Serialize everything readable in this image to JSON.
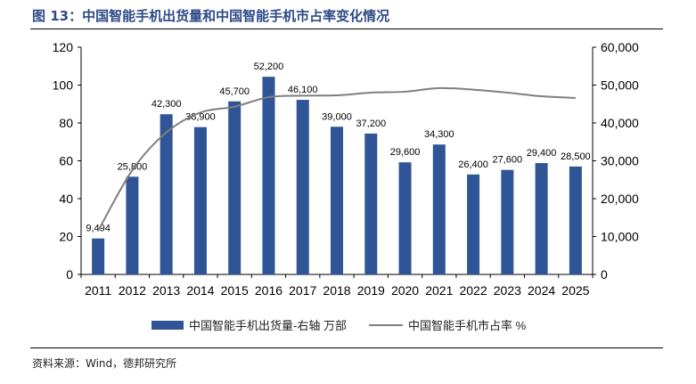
{
  "header": {
    "title": "图 13：中国智能手机出货量和中国智能手机市占率变化情况"
  },
  "footer": {
    "source": "资料来源：Wind，德邦研究所"
  },
  "chart_data": {
    "type": "bar+line",
    "title": "图 13：中国智能手机出货量和中国智能手机市占率变化情况",
    "categories": [
      "2011",
      "2012",
      "2013",
      "2014",
      "2015",
      "2016",
      "2017",
      "2018",
      "2019",
      "2020",
      "2021",
      "2022",
      "2023",
      "2024",
      "2025"
    ],
    "series": [
      {
        "name": "中国智能手机出货量-右轴 万部",
        "type": "bar",
        "axis": "right",
        "color": "#2f5597",
        "values": [
          9494,
          25800,
          42300,
          38900,
          45700,
          52200,
          46100,
          39000,
          37200,
          29600,
          34300,
          26400,
          27600,
          29400,
          28500
        ],
        "labels": [
          "9,494",
          "25,800",
          "42,300",
          "38,900",
          "45,700",
          "52,200",
          "46,100",
          "39,000",
          "37,200",
          "29,600",
          "34,300",
          "26,400",
          "27,600",
          "29,400",
          "28,500"
        ]
      },
      {
        "name": "中国智能手机市占率 %",
        "type": "line",
        "axis": "left",
        "color": "#7f7f7f",
        "values": [
          23,
          55,
          75,
          85.5,
          88.6,
          93.6,
          94.4,
          94.6,
          96,
          96.5,
          98.4,
          97.6,
          96,
          94.1,
          93.2
        ]
      }
    ],
    "left_axis": {
      "range": [
        0,
        120
      ],
      "ticks": [
        "0",
        "20",
        "40",
        "60",
        "80",
        "100",
        "120"
      ]
    },
    "right_axis": {
      "range": [
        0,
        60000
      ],
      "ticks": [
        "0",
        "10,000",
        "20,000",
        "30,000",
        "40,000",
        "50,000",
        "60,000"
      ]
    },
    "grid": false,
    "legend": "bottom"
  }
}
